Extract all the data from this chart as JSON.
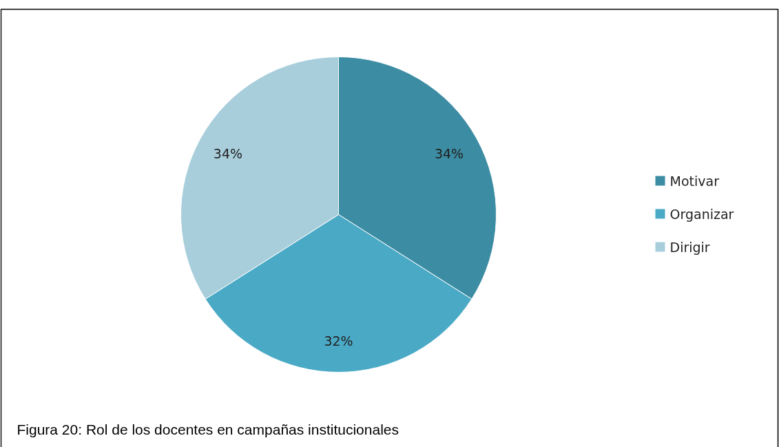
{
  "chart_data": {
    "type": "pie",
    "categories": [
      "Motivar",
      "Organizar",
      "Dirigir"
    ],
    "values": [
      34,
      32,
      34
    ],
    "value_labels": [
      "34%",
      "32%",
      "34%"
    ],
    "colors": [
      "#3c8ca3",
      "#4aaac6",
      "#a8cedb"
    ],
    "legend": "right",
    "annotations": [
      "Figura 20: Rol de los docentes en campañas institucionales"
    ]
  }
}
